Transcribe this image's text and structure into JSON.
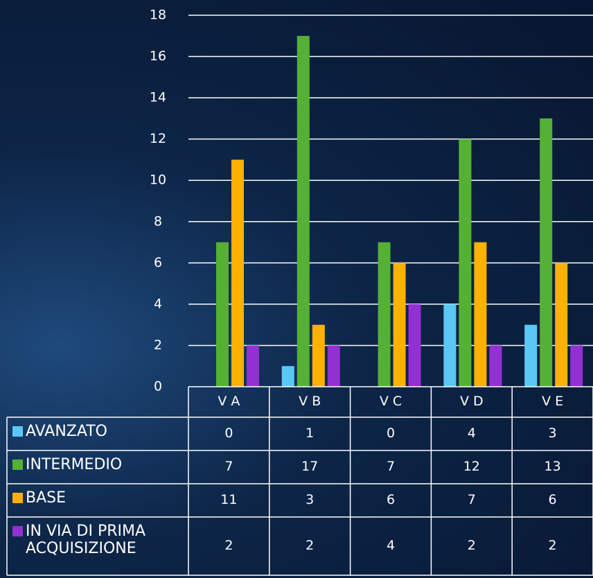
{
  "chart_data": {
    "type": "bar",
    "categories": [
      "V A",
      "V B",
      "V C",
      "V D",
      "V E"
    ],
    "series": [
      {
        "name": "AVANZATO",
        "color": "#5ac8f5",
        "values": [
          0,
          1,
          0,
          4,
          3
        ]
      },
      {
        "name": "INTERMEDIO",
        "color": "#55b134",
        "values": [
          7,
          17,
          7,
          12,
          13
        ]
      },
      {
        "name": "BASE",
        "color": "#ffb100",
        "values": [
          11,
          3,
          6,
          7,
          6
        ]
      },
      {
        "name": "IN VIA DI PRIMA ACQUISIZIONE",
        "color": "#9330d4",
        "values": [
          2,
          2,
          4,
          2,
          2
        ]
      }
    ],
    "ylim": [
      0,
      18
    ],
    "yticks": [
      0,
      2,
      4,
      6,
      8,
      10,
      12,
      14,
      16,
      18
    ],
    "grid": true
  }
}
